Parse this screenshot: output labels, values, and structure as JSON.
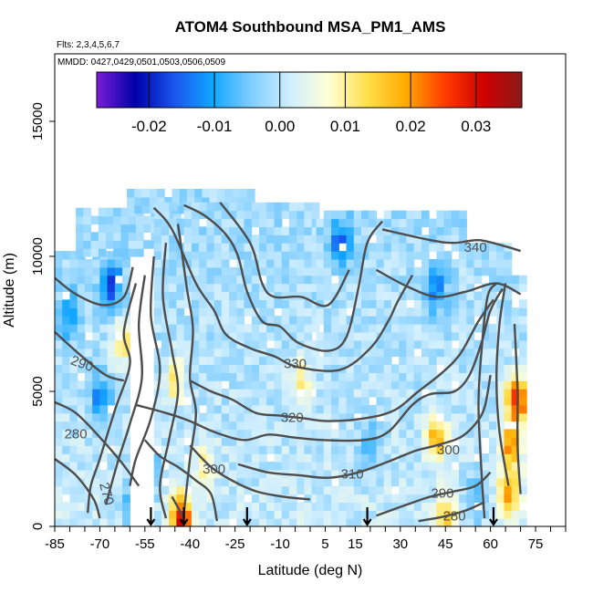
{
  "chart_data": {
    "type": "heatmap",
    "title": "ATOM4 Southbound MSA_PM1_AMS",
    "flights_note": "Flts: 2,3,4,5,6,7",
    "dates_note": "MMDD: 0427,0429,0501,0503,0506,0509",
    "xlabel": "Latitude (deg N)",
    "ylabel": "Altitude (m)",
    "xlim": [
      -85,
      85
    ],
    "ylim": [
      0,
      17500
    ],
    "x_ticks": [
      -85,
      -70,
      -55,
      -40,
      -25,
      -10,
      5,
      15,
      30,
      45,
      60,
      75
    ],
    "x_minor_step": 5,
    "y_ticks": [
      0,
      5000,
      10000,
      15000
    ],
    "colorbar": {
      "range": [
        -0.028,
        0.037
      ],
      "ticks": [
        -0.02,
        -0.01,
        0.0,
        0.01,
        0.02,
        0.03
      ],
      "tick_labels": [
        "-0.02",
        "-0.01",
        "0.00",
        "0.01",
        "0.02",
        "0.03"
      ],
      "colors": [
        "#7a1dd6",
        "#0000a8",
        "#1a55ee",
        "#12a6ff",
        "#7fcdff",
        "#cfeeff",
        "#ffffd6",
        "#ffe04a",
        "#ffaa00",
        "#ff3c00",
        "#d10000",
        "#8a1a1a"
      ]
    },
    "field": {
      "lat_bins": [
        [
          -85,
          -61,
          0,
          10000
        ],
        [
          -78,
          -43,
          10000,
          11600
        ],
        [
          -61,
          -20,
          11600,
          12400
        ],
        [
          -52,
          2,
          0,
          12000
        ],
        [
          2,
          52,
          0,
          11500
        ],
        [
          52,
          67,
          0,
          10500
        ],
        [
          67,
          72,
          0,
          9300
        ]
      ],
      "hotspots": [
        {
          "lat": 69,
          "alt": 4700,
          "value": 0.028
        },
        {
          "lat": 67,
          "alt": 3000,
          "value": 0.02
        },
        {
          "lat": 66,
          "alt": 1200,
          "value": 0.018
        },
        {
          "lat": 42,
          "alt": 3300,
          "value": 0.018
        },
        {
          "lat": 45,
          "alt": 200,
          "value": 0.015
        },
        {
          "lat": -43,
          "alt": 300,
          "value": 0.03
        },
        {
          "lat": -62,
          "alt": 6800,
          "value": 0.012
        },
        {
          "lat": -45,
          "alt": 5400,
          "value": 0.011
        },
        {
          "lat": -35,
          "alt": 2200,
          "value": 0.01
        },
        {
          "lat": -3,
          "alt": 5400,
          "value": 0.01
        },
        {
          "lat": -55,
          "alt": 2000,
          "value": -0.025
        },
        {
          "lat": -58,
          "alt": 800,
          "value": -0.018
        },
        {
          "lat": -66,
          "alt": 9000,
          "value": -0.016
        },
        {
          "lat": 10,
          "alt": 10500,
          "value": -0.013
        },
        {
          "lat": -70,
          "alt": 4800,
          "value": -0.012
        },
        {
          "lat": -80,
          "alt": 7800,
          "value": -0.011
        },
        {
          "lat": 20,
          "alt": 3000,
          "value": -0.01
        },
        {
          "lat": 42,
          "alt": 8800,
          "value": -0.011
        },
        {
          "lat": 55,
          "alt": 1000,
          "value": -0.009
        }
      ]
    },
    "contour_labels": [
      {
        "text": "340",
        "lat": 55,
        "alt": 10300
      },
      {
        "text": "330",
        "lat": -5,
        "alt": 6000
      },
      {
        "text": "320",
        "lat": -6,
        "alt": 4000
      },
      {
        "text": "310",
        "lat": 14,
        "alt": 1900
      },
      {
        "text": "300",
        "lat": -32,
        "alt": 2100
      },
      {
        "text": "300",
        "lat": 46,
        "alt": 2800
      },
      {
        "text": "290",
        "lat": -76,
        "alt": 6000
      },
      {
        "text": "290",
        "lat": 44,
        "alt": 1200
      },
      {
        "text": "280",
        "lat": -78,
        "alt": 3400
      },
      {
        "text": "280",
        "lat": 48,
        "alt": 350
      },
      {
        "text": "270",
        "lat": -68,
        "alt": 1200
      }
    ],
    "contours": [
      [
        [
          -58,
          9000
        ],
        [
          -62,
          7200
        ],
        [
          -60,
          6000
        ],
        [
          -65,
          4300
        ],
        [
          -70,
          2500
        ],
        [
          -73,
          1500
        ],
        [
          -74,
          500
        ]
      ],
      [
        [
          -55,
          9300
        ],
        [
          -57,
          7500
        ],
        [
          -56,
          5500
        ],
        [
          -60,
          3800
        ],
        [
          -64,
          2400
        ],
        [
          -68,
          800
        ]
      ],
      [
        [
          -52,
          10000
        ],
        [
          -53,
          7800
        ],
        [
          -50,
          5800
        ],
        [
          -53,
          4000
        ],
        [
          -58,
          2500
        ],
        [
          -60,
          1500
        ]
      ],
      [
        [
          -48,
          10500
        ],
        [
          -49,
          8500
        ],
        [
          -46,
          6500
        ],
        [
          -44,
          5000
        ],
        [
          -47,
          3200
        ],
        [
          -50,
          1500
        ],
        [
          -48,
          300
        ]
      ],
      [
        [
          -44,
          11200
        ],
        [
          -41,
          8800
        ],
        [
          -39,
          7300
        ],
        [
          -40,
          5500
        ],
        [
          -38,
          4200
        ],
        [
          -40,
          2500
        ],
        [
          -42,
          500
        ]
      ],
      [
        [
          -85,
          7200
        ],
        [
          -76,
          6300
        ],
        [
          -68,
          5600
        ],
        [
          -62,
          5400
        ]
      ],
      [
        [
          -85,
          4600
        ],
        [
          -78,
          4200
        ],
        [
          -70,
          3300
        ],
        [
          -63,
          2400
        ],
        [
          -57,
          1500
        ]
      ],
      [
        [
          -85,
          9200
        ],
        [
          -78,
          8600
        ],
        [
          -69,
          8200
        ],
        [
          -62,
          8500
        ],
        [
          -59,
          9600
        ]
      ],
      [
        [
          -85,
          2500
        ],
        [
          -78,
          1900
        ],
        [
          -72,
          1000
        ],
        [
          -70,
          300
        ]
      ],
      [
        [
          -52,
          11800
        ],
        [
          -46,
          11000
        ],
        [
          -38,
          9000
        ],
        [
          -32,
          8000
        ],
        [
          -28,
          7100
        ],
        [
          -20,
          6600
        ],
        [
          -12,
          6300
        ],
        [
          -4,
          5900
        ],
        [
          10,
          5800
        ],
        [
          20,
          6600
        ],
        [
          26,
          7600
        ],
        [
          29,
          8300
        ],
        [
          34,
          9300
        ]
      ],
      [
        [
          -42,
          11900
        ],
        [
          -35,
          11500
        ],
        [
          -28,
          10800
        ],
        [
          -24,
          10000
        ],
        [
          -21,
          8700
        ],
        [
          -16,
          7600
        ],
        [
          -10,
          7400
        ],
        [
          -4,
          6800
        ],
        [
          6,
          6500
        ],
        [
          12,
          7000
        ],
        [
          16,
          8800
        ],
        [
          19,
          10500
        ],
        [
          24,
          11300
        ]
      ],
      [
        [
          -30,
          12000
        ],
        [
          -20,
          10500
        ],
        [
          -16,
          9000
        ],
        [
          -12,
          8500
        ],
        [
          -3,
          8500
        ],
        [
          6,
          8200
        ],
        [
          13,
          9500
        ]
      ],
      [
        [
          -58,
          4500
        ],
        [
          -48,
          4200
        ],
        [
          -40,
          3900
        ],
        [
          -32,
          3500
        ],
        [
          -22,
          3200
        ],
        [
          -14,
          3400
        ],
        [
          -6,
          3300
        ],
        [
          4,
          3200
        ],
        [
          18,
          3200
        ],
        [
          26,
          3500
        ],
        [
          34,
          4500
        ],
        [
          40,
          4900
        ],
        [
          48,
          5000
        ],
        [
          53,
          5600
        ],
        [
          57,
          6800
        ],
        [
          60,
          8000
        ],
        [
          64,
          8800
        ]
      ],
      [
        [
          -40,
          5400
        ],
        [
          -33,
          5000
        ],
        [
          -26,
          4700
        ],
        [
          -18,
          4200
        ],
        [
          -10,
          4100
        ],
        [
          -2,
          4000
        ],
        [
          6,
          3900
        ],
        [
          18,
          4000
        ],
        [
          28,
          4300
        ],
        [
          36,
          5000
        ],
        [
          44,
          5700
        ],
        [
          50,
          6400
        ],
        [
          56,
          7600
        ],
        [
          61,
          8400
        ]
      ],
      [
        [
          -24,
          2300
        ],
        [
          -14,
          2000
        ],
        [
          -4,
          1900
        ],
        [
          6,
          1800
        ],
        [
          16,
          2000
        ],
        [
          26,
          2400
        ],
        [
          35,
          2800
        ],
        [
          42,
          3000
        ],
        [
          50,
          3300
        ],
        [
          55,
          3800
        ],
        [
          58,
          4400
        ],
        [
          60,
          5600
        ]
      ],
      [
        [
          -40,
          3000
        ],
        [
          -33,
          2200
        ],
        [
          -26,
          1700
        ],
        [
          -18,
          1300
        ],
        [
          -9,
          1100
        ],
        [
          0,
          1000
        ]
      ],
      [
        [
          -55,
          3200
        ],
        [
          -50,
          2600
        ],
        [
          -44,
          2200
        ],
        [
          -38,
          1700
        ],
        [
          -33,
          1200
        ],
        [
          -31,
          200
        ]
      ],
      [
        [
          -46,
          1100
        ],
        [
          -44,
          700
        ],
        [
          -42,
          300
        ]
      ],
      [
        [
          22,
          400
        ],
        [
          32,
          800
        ],
        [
          40,
          1100
        ],
        [
          48,
          1300
        ],
        [
          55,
          1500
        ],
        [
          60,
          2000
        ]
      ],
      [
        [
          36,
          200
        ],
        [
          44,
          350
        ],
        [
          52,
          600
        ],
        [
          58,
          900
        ]
      ],
      [
        [
          58,
          300
        ],
        [
          57,
          2000
        ],
        [
          56,
          4500
        ],
        [
          57,
          6500
        ],
        [
          59,
          8500
        ],
        [
          62,
          9000
        ]
      ],
      [
        [
          66,
          1500
        ],
        [
          63,
          3500
        ],
        [
          62,
          5500
        ],
        [
          63,
          7500
        ],
        [
          65,
          9000
        ]
      ],
      [
        [
          68,
          7500
        ],
        [
          69,
          5000
        ],
        [
          69,
          3000
        ],
        [
          70,
          1200
        ]
      ],
      [
        [
          24,
          11000
        ],
        [
          40,
          10600
        ],
        [
          48,
          10500
        ],
        [
          56,
          10600
        ],
        [
          64,
          10400
        ],
        [
          70,
          10200
        ]
      ],
      [
        [
          22,
          9500
        ],
        [
          32,
          8900
        ],
        [
          42,
          8500
        ],
        [
          52,
          8700
        ],
        [
          62,
          9000
        ],
        [
          70,
          8600
        ]
      ]
    ],
    "markers_lat": [
      -53,
      -42,
      -21,
      19,
      61
    ]
  }
}
